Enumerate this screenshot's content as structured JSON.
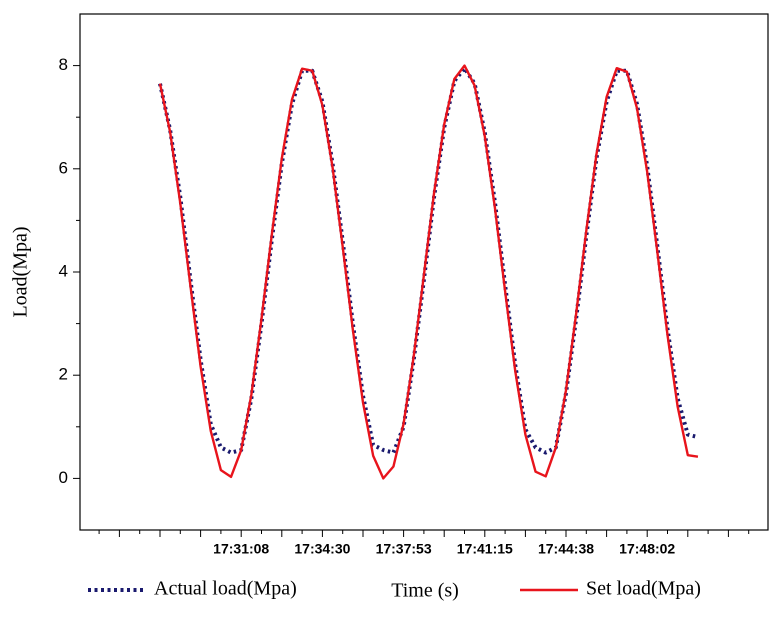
{
  "chart_data": {
    "type": "line",
    "x_label": "Time (s)",
    "y_label": "Load(Mpa)",
    "categories": [
      null,
      null,
      null,
      null,
      null,
      null,
      null,
      null,
      "17:31:08",
      null,
      null,
      null,
      null,
      null,
      null,
      null,
      "17:34:30",
      null,
      null,
      null,
      null,
      null,
      null,
      null,
      "17:37:53",
      null,
      null,
      null,
      null,
      null,
      null,
      null,
      "17:41:15",
      null,
      null,
      null,
      null,
      null,
      null,
      null,
      "17:44:38",
      null,
      null,
      null,
      null,
      null,
      null,
      null,
      "17:48:02",
      null,
      null,
      null,
      null,
      null
    ],
    "series": [
      {
        "name": "Actual load(Mpa)",
        "color": "#1a1a6e",
        "style": "dotted",
        "values": [
          7.65,
          6.75,
          5.45,
          3.85,
          2.3,
          1.05,
          0.6,
          0.5,
          0.55,
          1.55,
          3.0,
          4.6,
          6.1,
          7.25,
          7.9,
          7.9,
          7.3,
          6.1,
          4.6,
          3.0,
          1.6,
          0.65,
          0.55,
          0.5,
          1.0,
          2.3,
          3.85,
          5.45,
          6.8,
          7.7,
          7.95,
          7.65,
          6.7,
          5.35,
          3.75,
          2.2,
          0.95,
          0.6,
          0.5,
          0.6,
          1.65,
          3.1,
          4.7,
          6.2,
          7.3,
          7.9,
          7.9,
          7.25,
          6.05,
          4.5,
          2.9,
          1.55,
          0.85,
          0.8
        ]
      },
      {
        "name": "Set load(Mpa)",
        "color": "#e8141c",
        "style": "solid",
        "values": [
          7.65,
          6.71,
          5.33,
          3.73,
          2.17,
          0.92,
          0.16,
          0.03,
          0.55,
          1.62,
          3.09,
          4.7,
          6.2,
          7.34,
          7.94,
          7.9,
          7.23,
          6.03,
          4.49,
          2.88,
          1.47,
          0.44,
          0.0,
          0.23,
          1.06,
          2.37,
          3.94,
          5.53,
          6.86,
          7.74,
          8.0,
          7.61,
          6.63,
          5.24,
          3.63,
          2.08,
          0.85,
          0.13,
          0.04,
          0.6,
          1.71,
          3.19,
          4.8,
          6.28,
          7.39,
          7.95,
          7.88,
          7.17,
          5.94,
          4.39,
          2.78,
          1.39,
          0.45,
          0.42
        ]
      }
    ],
    "ylim": [
      -1,
      9
    ],
    "yticks": [
      0,
      2,
      4,
      6,
      8
    ]
  }
}
